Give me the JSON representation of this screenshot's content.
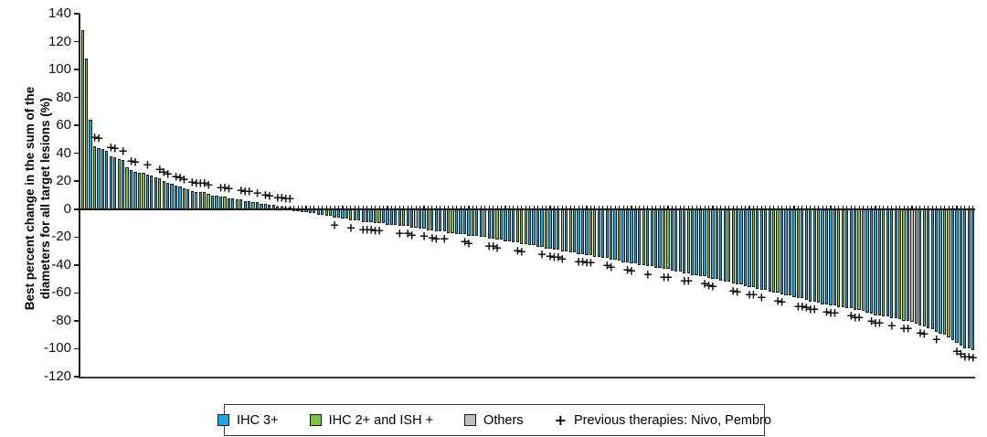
{
  "colors": {
    "ihc3": "#1FA8E0",
    "ihc2ish": "#7DC242",
    "others": "#BFBFBF",
    "outline": "#1b1b1b",
    "axis": "#1a1a1a",
    "background": "#ffffff"
  },
  "y_axis": {
    "title_lines": [
      "Best percent change in the sum of the",
      "diameters for all target lesions (%)"
    ],
    "ticks": [
      140,
      120,
      100,
      80,
      60,
      40,
      20,
      0,
      -20,
      -40,
      -60,
      -80,
      -100,
      -120
    ],
    "max": 140,
    "min": -120
  },
  "legend": {
    "items": [
      {
        "label": "IHC 3+",
        "color": "#1FA8E0",
        "type": "swatch"
      },
      {
        "label": "IHC 2+ and ISH +",
        "color": "#7DC242",
        "type": "swatch"
      },
      {
        "label": "Others",
        "color": "#BFBFBF",
        "type": "swatch"
      },
      {
        "label": "Previous therapies: Nivo, Pembro",
        "symbol": "+",
        "type": "marker"
      }
    ]
  },
  "chart_data": {
    "type": "bar",
    "subtype": "waterfall",
    "title": "",
    "xlabel": "",
    "ylabel": "Best percent change in the sum of the diameters for all target lesions (%)",
    "ylim": [
      -120,
      140
    ],
    "grid": false,
    "legend_position": "bottom",
    "group_codes": {
      "b": "IHC 3+",
      "g": "IHC 2+ and ISH +",
      "o": "Others"
    },
    "plus_marker_meaning": "Previous therapies: Nivo, Pembro",
    "plus_offset_units": 6,
    "bars": {
      "values": [
        128,
        108,
        64,
        45,
        44,
        43,
        42,
        38,
        37,
        36,
        35,
        30,
        28,
        27,
        26,
        26,
        25,
        24,
        23,
        22,
        20,
        19,
        18,
        17,
        16,
        15,
        14,
        13,
        12,
        12,
        12,
        11,
        10,
        10,
        9,
        9,
        8,
        8,
        7,
        7,
        6,
        6,
        5,
        5,
        4,
        4,
        3,
        3,
        2,
        2,
        1,
        1,
        -1,
        -1,
        -2,
        -2,
        -3,
        -3,
        -4,
        -4,
        -5,
        -5,
        -6,
        -6,
        -7,
        -7,
        -8,
        -8,
        -8,
        -9,
        -9,
        -9,
        -10,
        -10,
        -10,
        -11,
        -11,
        -11,
        -12,
        -12,
        -12,
        -13,
        -13,
        -14,
        -14,
        -15,
        -15,
        -16,
        -16,
        -16,
        -17,
        -17,
        -18,
        -18,
        -18,
        -19,
        -19,
        -19,
        -20,
        -20,
        -21,
        -21,
        -22,
        -22,
        -23,
        -23,
        -24,
        -24,
        -25,
        -25,
        -26,
        -26,
        -27,
        -27,
        -28,
        -28,
        -29,
        -29,
        -30,
        -30,
        -31,
        -31,
        -32,
        -32,
        -33,
        -33,
        -34,
        -34,
        -35,
        -35,
        -36,
        -36,
        -37,
        -38,
        -38,
        -39,
        -39,
        -40,
        -40,
        -41,
        -41,
        -42,
        -42,
        -43,
        -43,
        -44,
        -45,
        -45,
        -46,
        -46,
        -47,
        -47,
        -48,
        -48,
        -49,
        -50,
        -50,
        -51,
        -52,
        -52,
        -53,
        -54,
        -54,
        -55,
        -56,
        -56,
        -57,
        -58,
        -58,
        -59,
        -60,
        -60,
        -61,
        -62,
        -62,
        -63,
        -64,
        -64,
        -65,
        -66,
        -66,
        -67,
        -68,
        -68,
        -69,
        -69,
        -70,
        -70,
        -71,
        -71,
        -72,
        -72,
        -73,
        -74,
        -75,
        -76,
        -76,
        -77,
        -77,
        -78,
        -78,
        -79,
        -80,
        -80,
        -81,
        -82,
        -83,
        -84,
        -85,
        -86,
        -88,
        -89,
        -90,
        -92,
        -94,
        -96,
        -98,
        -100,
        -100,
        -101
      ],
      "groups": [
        "g",
        "g",
        "b",
        "g",
        "b",
        "b",
        "b",
        "b",
        "b",
        "g",
        "b",
        "g",
        "b",
        "b",
        "g",
        "g",
        "b",
        "b",
        "b",
        "g",
        "g",
        "b",
        "b",
        "b",
        "b",
        "g",
        "b",
        "b",
        "o",
        "b",
        "g",
        "g",
        "b",
        "b",
        "b",
        "g",
        "b",
        "b",
        "g",
        "b",
        "b",
        "b",
        "g",
        "b",
        "b",
        "g",
        "b",
        "b",
        "g",
        "b",
        "b",
        "b",
        "b",
        "b",
        "b",
        "b",
        "b",
        "b",
        "b",
        "b",
        "g",
        "g",
        "b",
        "b",
        "b",
        "b",
        "g",
        "b",
        "b",
        "b",
        "b",
        "b",
        "g",
        "g",
        "b",
        "b",
        "b",
        "b",
        "b",
        "g",
        "b",
        "b",
        "o",
        "b",
        "b",
        "g",
        "b",
        "b",
        "b",
        "b",
        "g",
        "g",
        "b",
        "b",
        "b",
        "b",
        "g",
        "b",
        "b",
        "o",
        "b",
        "b",
        "g",
        "b",
        "b",
        "b",
        "b",
        "g",
        "g",
        "g",
        "b",
        "b",
        "b",
        "b",
        "g",
        "b",
        "b",
        "b",
        "o",
        "b",
        "g",
        "b",
        "b",
        "b",
        "b",
        "g",
        "g",
        "b",
        "b",
        "b",
        "b",
        "b",
        "g",
        "b",
        "b",
        "b",
        "b",
        "b",
        "g",
        "b",
        "b",
        "b",
        "b",
        "g",
        "g",
        "b",
        "b",
        "b",
        "b",
        "g",
        "b",
        "b",
        "b",
        "b",
        "g",
        "b",
        "b",
        "b",
        "b",
        "g",
        "g",
        "b",
        "b",
        "b",
        "b",
        "g",
        "b",
        "b",
        "b",
        "b",
        "g",
        "g",
        "b",
        "b",
        "b",
        "b",
        "g",
        "b",
        "b",
        "b",
        "b",
        "g",
        "b",
        "b",
        "b",
        "b",
        "g",
        "g",
        "b",
        "b",
        "b",
        "g",
        "o",
        "b",
        "b",
        "b",
        "b",
        "g",
        "b",
        "b",
        "b",
        "g",
        "g",
        "b",
        "o",
        "o",
        "b",
        "g",
        "b",
        "b",
        "b",
        "b",
        "g",
        "g",
        "b",
        "b",
        "b",
        "b",
        "b",
        "b"
      ],
      "plus_marker_indices": [
        3,
        4,
        7,
        8,
        10,
        12,
        13,
        16,
        19,
        20,
        21,
        23,
        24,
        25,
        27,
        28,
        29,
        30,
        31,
        34,
        35,
        36,
        39,
        40,
        41,
        43,
        45,
        46,
        48,
        49,
        50,
        51,
        62,
        66,
        69,
        70,
        71,
        72,
        73,
        78,
        80,
        81,
        84,
        86,
        87,
        89,
        94,
        95,
        100,
        101,
        102,
        107,
        108,
        113,
        115,
        116,
        117,
        118,
        122,
        123,
        124,
        125,
        129,
        130,
        134,
        135,
        139,
        143,
        144,
        148,
        149,
        153,
        154,
        155,
        160,
        161,
        164,
        165,
        167,
        171,
        172,
        176,
        177,
        178,
        179,
        180,
        183,
        184,
        185,
        189,
        190,
        191,
        194,
        195,
        196,
        199,
        202,
        203,
        206,
        207,
        210,
        215,
        216,
        217,
        218,
        219
      ]
    }
  }
}
